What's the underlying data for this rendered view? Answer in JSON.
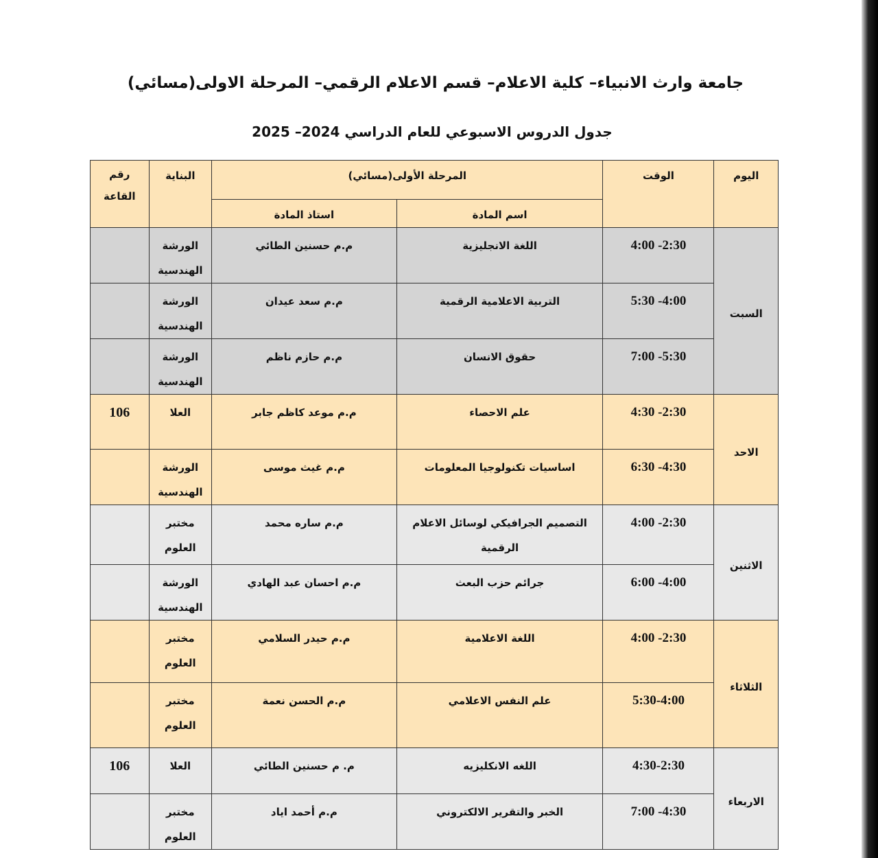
{
  "header": {
    "title": "جامعة وارث الانبياء– كلية الاعلام– قسم الاعلام الرقمي– المرحلة الاولى(مسائي)",
    "subtitle": "جدول الدروس الاسبوعي للعام الدراسي 2024– 2025"
  },
  "table": {
    "columns": {
      "day": "اليوم",
      "time": "الوقت",
      "stage": "المرحلة الأولى(مسائي)",
      "subject": "اسم المادة",
      "teacher": "استاذ المادة",
      "building": "البناية",
      "room": "رقم القاعة"
    },
    "colors": {
      "peach": "#fde4b8",
      "gray": "#d4d4d4",
      "light_gray": "#e8e8e8"
    },
    "days": [
      {
        "day": "السبت",
        "color": "#d4d4d4",
        "rows": [
          {
            "time": "4:00 -2:30",
            "subject": "اللغة الانجليزية",
            "teacher": "م.م حسنين الطائي",
            "building": "الورشة الهندسية",
            "room": ""
          },
          {
            "time": "5:30 -4:00",
            "subject": "التربية الاعلامية الرقمية",
            "teacher": "م.م سعد عيدان",
            "building": "الورشة الهندسية",
            "room": ""
          },
          {
            "time": "7:00 -5:30",
            "subject": "حقوق الانسان",
            "teacher": "م.م حازم ناظم",
            "building": "الورشة الهندسية",
            "room": ""
          }
        ]
      },
      {
        "day": "الاحد",
        "color": "#fde4b8",
        "rows": [
          {
            "time": "4:30 -2:30",
            "subject": "علم الاحصاء",
            "teacher": "م.م موعد كاظم جابر",
            "building": "العلا",
            "room": "106"
          },
          {
            "time": "6:30 -4:30",
            "subject": "اساسيات تكنولوجيا المعلومات",
            "teacher": "م.م  غيث موسى",
            "building": "الورشة الهندسية",
            "room": ""
          }
        ]
      },
      {
        "day": "الاثنين",
        "color": "#e8e8e8",
        "rows": [
          {
            "time": "4:00 -2:30",
            "subject": "التصميم الجرافيكي لوسائل الاعلام الرقمية",
            "teacher": "م.م ساره محمد",
            "building": "مختبر العلوم",
            "room": ""
          },
          {
            "time": "6:00 -4:00",
            "subject": "جرائم حزب البعث",
            "teacher": "م.م احسان عبد الهادي",
            "building": "الورشة الهندسية",
            "room": ""
          }
        ]
      },
      {
        "day": "الثلاثاء",
        "color": "#fde4b8",
        "rows": [
          {
            "time": "4:00 -2:30",
            "subject": "اللغة الاعلامية",
            "teacher": "م.م حيدر السلامي",
            "building": "مختبر العلوم",
            "room": ""
          },
          {
            "time": "5:30-4:00",
            "subject": "علم النفس الاعلامي",
            "teacher": "م.م الحسن نعمة",
            "building": "مختبر العلوم",
            "room": ""
          }
        ]
      },
      {
        "day": "الاربعاء",
        "color": "#e8e8e8",
        "rows": [
          {
            "time": "4:30-2:30",
            "subject": "اللغه الانكليزيه",
            "teacher": "م. م حسنين الطائي",
            "building": "العلا",
            "room": "106"
          },
          {
            "time": "7:00 -4:30",
            "subject": "الخبر والتقرير الالكتروني",
            "teacher": "م.م أحمد اياد",
            "building": "مختبر العلوم",
            "room": ""
          }
        ]
      }
    ]
  }
}
